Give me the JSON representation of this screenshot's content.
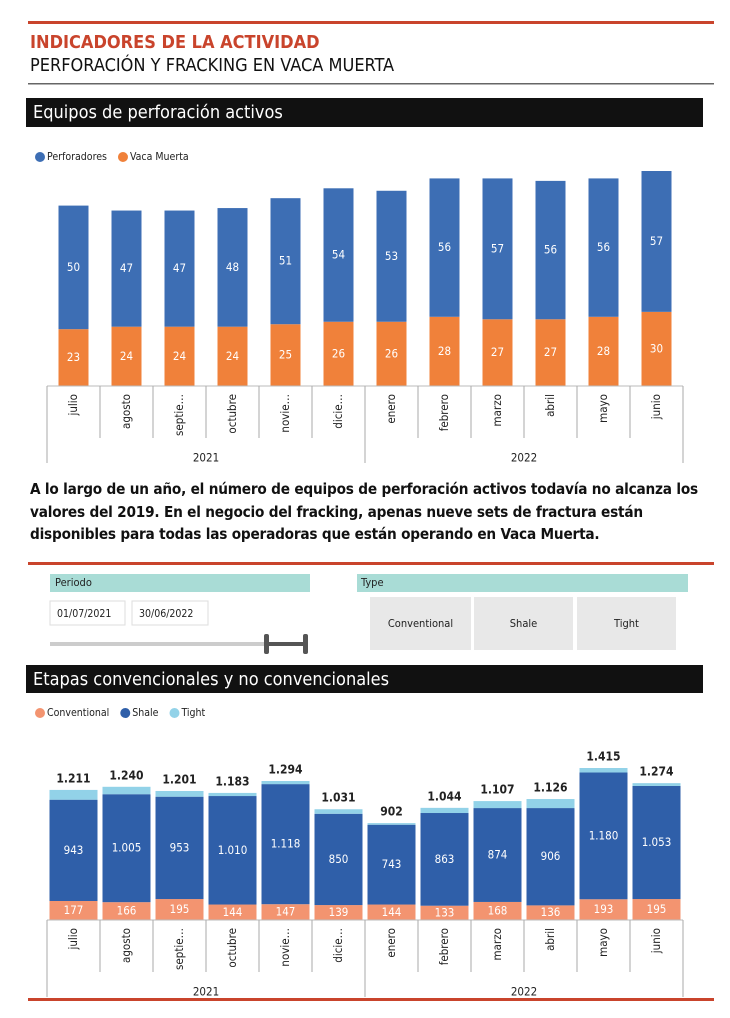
{
  "header": {
    "kicker": "INDICADORES DE LA ACTIVIDAD",
    "title": "PERFORACIÓN Y FRACKING EN VACA MUERTA"
  },
  "paragraph": "A lo largo de un año, el número de equipos de perforación activos todavía no alcanza los valores del 2019. En el negocio del fracking, apenas nueve sets de fractura están disponibles para todas las operadoras que están operando en Vaca Muerta.",
  "filters": {
    "period": {
      "label": "Periodo",
      "start": "01/07/2021",
      "end": "30/06/2022"
    },
    "type": {
      "label": "Type",
      "options": [
        "Conventional",
        "Shale",
        "Tight"
      ]
    }
  },
  "chart_data": [
    {
      "type": "stacked-bar",
      "title": "Equipos de perforación activos",
      "groups": [
        {
          "name": "2021",
          "categories": [
            "julio",
            "agosto",
            "septie…",
            "octubre",
            "novie…",
            "dicie…"
          ]
        },
        {
          "name": "2022",
          "categories": [
            "enero",
            "febrero",
            "marzo",
            "abril",
            "mayo",
            "junio"
          ]
        }
      ],
      "series": [
        {
          "name": "Vaca Muerta",
          "color": "#f0813a",
          "data_labels": true,
          "values": [
            23,
            24,
            24,
            24,
            25,
            26,
            26,
            28,
            27,
            27,
            28,
            30
          ]
        },
        {
          "name": "Perforadores",
          "color": "#3d6eb4",
          "data_labels": true,
          "values": [
            50,
            47,
            47,
            48,
            51,
            54,
            53,
            56,
            57,
            56,
            56,
            57
          ]
        }
      ],
      "legend_order": [
        1,
        0
      ]
    },
    {
      "type": "stacked-bar",
      "title": "Etapas convencionales y no convencionales",
      "groups": [
        {
          "name": "2021",
          "categories": [
            "julio",
            "agosto",
            "septie…",
            "octubre",
            "novie…",
            "dicie…"
          ]
        },
        {
          "name": "2022",
          "categories": [
            "enero",
            "febrero",
            "marzo",
            "abril",
            "mayo",
            "junio"
          ]
        }
      ],
      "series": [
        {
          "name": "Conventional",
          "color": "#f39470",
          "data_labels": true,
          "values": [
            177,
            166,
            195,
            144,
            147,
            139,
            144,
            133,
            168,
            136,
            193,
            195
          ]
        },
        {
          "name": "Shale",
          "color": "#2f5fa9",
          "data_labels": true,
          "values": [
            943,
            1005,
            953,
            1010,
            1118,
            850,
            743,
            863,
            874,
            906,
            1180,
            1053
          ],
          "value_labels": [
            "943",
            "1.005",
            "953",
            "1.010",
            "1.118",
            "850",
            "743",
            "863",
            "874",
            "906",
            "1.180",
            "1.053"
          ]
        },
        {
          "name": "Tight",
          "color": "#92d2e8",
          "data_labels": false,
          "values": [
            91,
            69,
            53,
            29,
            29,
            42,
            15,
            48,
            65,
            84,
            42,
            26
          ]
        }
      ],
      "totals": [
        {
          "value": 1211,
          "label": "1.211"
        },
        {
          "value": 1240,
          "label": "1.240"
        },
        {
          "value": 1201,
          "label": "1.201"
        },
        {
          "value": 1183,
          "label": "1.183"
        },
        {
          "value": 1294,
          "label": "1.294"
        },
        {
          "value": 1031,
          "label": "1.031"
        },
        {
          "value": 902,
          "label": "902"
        },
        {
          "value": 1044,
          "label": "1.044"
        },
        {
          "value": 1107,
          "label": "1.107"
        },
        {
          "value": 1126,
          "label": "1.126"
        },
        {
          "value": 1415,
          "label": "1.415"
        },
        {
          "value": 1274,
          "label": "1.274"
        }
      ],
      "legend_order": [
        0,
        1,
        2
      ]
    }
  ]
}
